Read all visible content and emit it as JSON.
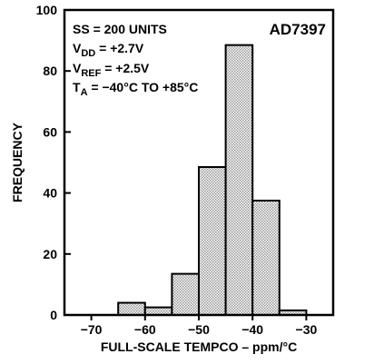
{
  "chart_data": {
    "type": "bar",
    "subtype": "histogram",
    "part_number": "AD7397",
    "conditions": [
      {
        "main": "SS = 200 UNITS",
        "sub": "",
        "tail": ""
      },
      {
        "main": "V",
        "sub": "DD",
        "tail": " = +2.7V"
      },
      {
        "main": "V",
        "sub": "REF",
        "tail": " = +2.5V"
      },
      {
        "main": "T",
        "sub": "A",
        "tail": " = −40°C TO +85°C"
      }
    ],
    "xlabel": "FULL-SCALE TEMPCO – ppm/°C",
    "ylabel": "FREQUENCY",
    "xlim": [
      -75,
      -25
    ],
    "ylim": [
      0,
      100
    ],
    "xticks": [
      -70,
      -60,
      -50,
      -40,
      -30
    ],
    "xtick_labels": [
      "−70",
      "−60",
      "−50",
      "−40",
      "−30"
    ],
    "yticks": [
      0,
      20,
      40,
      60,
      80,
      100
    ],
    "ytick_labels": [
      "0",
      "20",
      "40",
      "60",
      "80",
      "100"
    ],
    "bins": [
      {
        "from": -65,
        "to": -60,
        "value": 4
      },
      {
        "from": -60,
        "to": -55,
        "value": 2.5
      },
      {
        "from": -55,
        "to": -50,
        "value": 13.5
      },
      {
        "from": -50,
        "to": -45,
        "value": 48.5
      },
      {
        "from": -45,
        "to": -40,
        "value": 88.5
      },
      {
        "from": -40,
        "to": -35,
        "value": 37.5
      },
      {
        "from": -35,
        "to": -30,
        "value": 1.5
      }
    ],
    "bar_fill": "#d9d9d9",
    "bar_stroke": "#000000",
    "grid": false,
    "legend": "none"
  }
}
